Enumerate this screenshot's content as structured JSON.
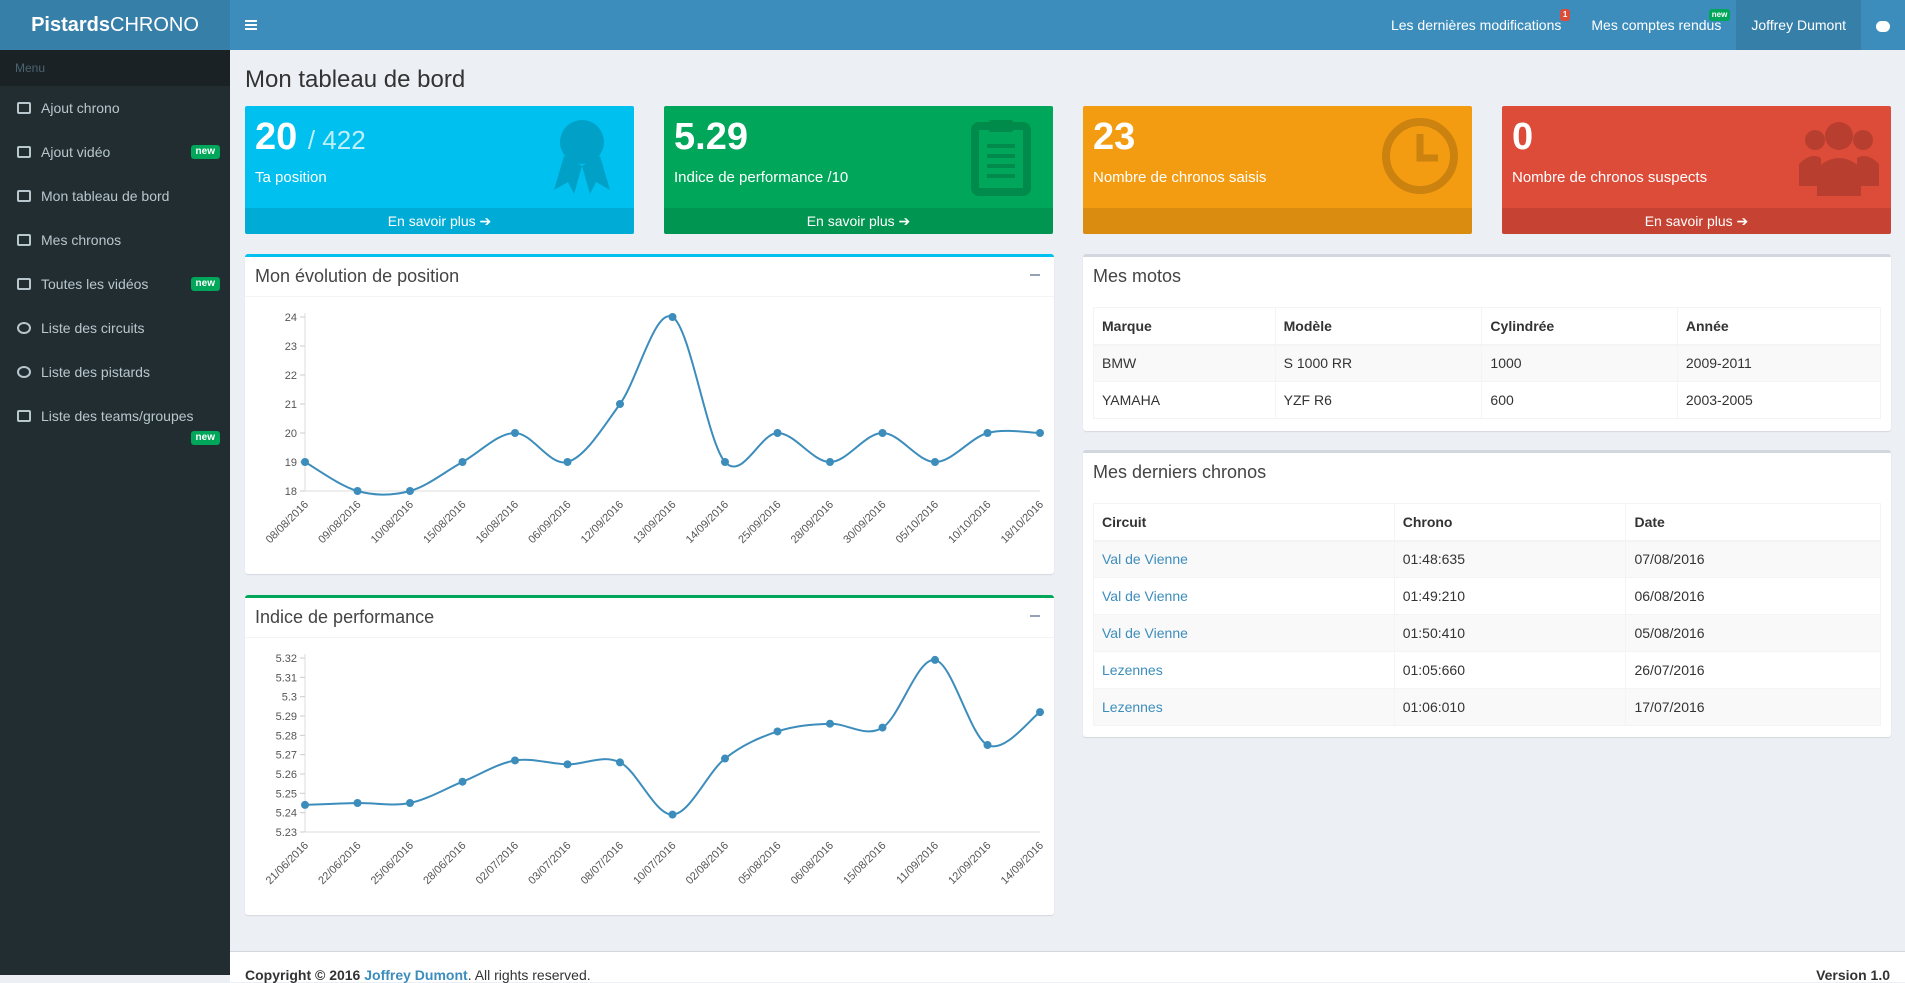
{
  "header": {
    "logo_bold": "Pistards",
    "logo_light": "CHRONO",
    "nav": [
      {
        "label": "Les dernières modifications",
        "badge": "1"
      },
      {
        "label": "Mes comptes rendus",
        "badge": "new"
      },
      {
        "label": "Joffrey Dumont"
      }
    ]
  },
  "sidebar": {
    "heading": "Menu",
    "items": [
      {
        "label": "Ajout chrono",
        "icon": "dashboard-icon"
      },
      {
        "label": "Ajout vidéo",
        "icon": "film-icon",
        "badge": "new"
      },
      {
        "label": "Mon tableau de bord",
        "icon": "database-icon"
      },
      {
        "label": "Mes chronos",
        "icon": "list-icon"
      },
      {
        "label": "Toutes les vidéos",
        "icon": "video-camera-icon",
        "badge": "new"
      },
      {
        "label": "Liste des circuits",
        "icon": "circle-icon"
      },
      {
        "label": "Liste des pistards",
        "icon": "user-icon"
      },
      {
        "label": "Liste des teams/groupes",
        "icon": "users-icon",
        "badge": "new"
      }
    ]
  },
  "page_title": "Mon tableau de bord",
  "stats": [
    {
      "value": "20",
      "suffix": "/ 422",
      "label": "Ta position",
      "link": "En savoir plus",
      "color": "#00c0ef",
      "icon": "ribbon-award-icon"
    },
    {
      "value": "5.29",
      "suffix": "",
      "label": "Indice de performance /10",
      "link": "En savoir plus",
      "color": "#00a65a",
      "icon": "clipboard-icon"
    },
    {
      "value": "23",
      "suffix": "",
      "label": "Nombre de chronos saisis",
      "link": "",
      "color": "#f39c12",
      "icon": "clock-icon"
    },
    {
      "value": "0",
      "suffix": "",
      "label": "Nombre de chronos suspects",
      "link": "En savoir plus",
      "color": "#dd4b39",
      "icon": "users-icon"
    }
  ],
  "position_box": {
    "title": "Mon évolution de position",
    "accent": "#00c0ef"
  },
  "perf_box": {
    "title": "Indice de performance",
    "accent": "#00a65a"
  },
  "chart_data": [
    {
      "type": "line",
      "title": "Mon évolution de position",
      "x": [
        "08/08/2016",
        "09/08/2016",
        "10/08/2016",
        "15/08/2016",
        "16/08/2016",
        "06/09/2016",
        "12/09/2016",
        "13/09/2016",
        "14/09/2016",
        "25/09/2016",
        "28/09/2016",
        "30/09/2016",
        "05/10/2016",
        "10/10/2016",
        "18/10/2016"
      ],
      "values": [
        19,
        18,
        18,
        19,
        20,
        19,
        21,
        24,
        19,
        20,
        19,
        20,
        19,
        20,
        20
      ],
      "yticks": [
        18,
        19,
        20,
        21,
        22,
        23,
        24
      ],
      "ylim": [
        18,
        24
      ],
      "color": "#3c8dbc"
    },
    {
      "type": "line",
      "title": "Indice de performance",
      "x": [
        "21/06/2016",
        "22/06/2016",
        "25/06/2016",
        "28/06/2016",
        "02/07/2016",
        "03/07/2016",
        "08/07/2016",
        "10/07/2016",
        "02/08/2016",
        "05/08/2016",
        "06/08/2016",
        "15/08/2016",
        "11/09/2016",
        "12/09/2016",
        "14/09/2016"
      ],
      "values": [
        5.244,
        5.245,
        5.245,
        5.256,
        5.267,
        5.265,
        5.266,
        5.239,
        5.268,
        5.282,
        5.286,
        5.284,
        5.319,
        5.275,
        5.292
      ],
      "yticks": [
        "5.23",
        "5.24",
        "5.25",
        "5.26",
        "5.27",
        "5.28",
        "5.29",
        "5.3",
        "5.31",
        "5.32"
      ],
      "ylim": [
        5.23,
        5.32
      ],
      "color": "#3c8dbc"
    }
  ],
  "motos": {
    "title": "Mes motos",
    "columns": [
      "Marque",
      "Modèle",
      "Cylindrée",
      "Année"
    ],
    "rows": [
      [
        "BMW",
        "S 1000 RR",
        "1000",
        "2009-2011"
      ],
      [
        "YAMAHA",
        "YZF R6",
        "600",
        "2003-2005"
      ]
    ]
  },
  "chronos": {
    "title": "Mes derniers chronos",
    "columns": [
      "Circuit",
      "Chrono",
      "Date"
    ],
    "rows": [
      [
        "Val de Vienne",
        "01:48:635",
        "07/08/2016"
      ],
      [
        "Val de Vienne",
        "01:49:210",
        "06/08/2016"
      ],
      [
        "Val de Vienne",
        "01:50:410",
        "05/08/2016"
      ],
      [
        "Lezennes",
        "01:05:660",
        "26/07/2016"
      ],
      [
        "Lezennes",
        "01:06:010",
        "17/07/2016"
      ]
    ]
  },
  "footer": {
    "prefix": "Copyright © 2016",
    "author": "Joffrey Dumont",
    "suffix": ". All rights reserved.",
    "version": "Version 1.0"
  }
}
